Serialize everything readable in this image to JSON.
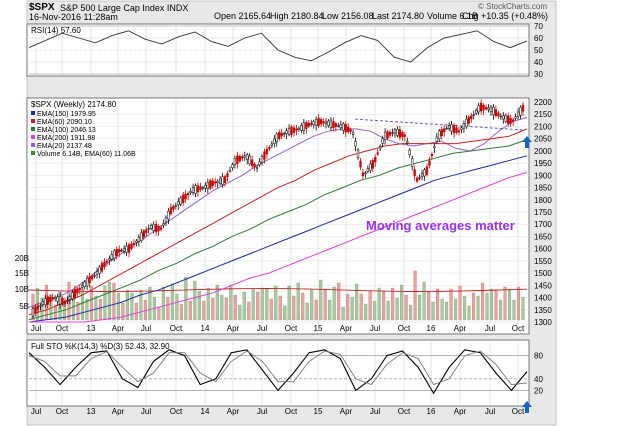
{
  "header": {
    "symbol": "$SPX",
    "name": "S&P 500 Large Cap Index INDX",
    "date": "16-Nov-2016 11:28am",
    "open": "Open 2165.64",
    "high": "High 2180.84",
    "low": "Low 2156.08",
    "last": "Last 2174.80",
    "volume": "Volume 6.1B",
    "chg": "Chg +10.35 (+0.48%)",
    "watermark": "© StockCharts.com"
  },
  "rsi_panel": {
    "title": "RSI(14) 57.60",
    "ticks": [
      "70",
      "60",
      "50",
      "40",
      "30"
    ]
  },
  "main_panel": {
    "title": "$SPX (Weekly) 2174.80",
    "legend": [
      {
        "label": "EMA(150) 1979.95",
        "color": "#1a2aa8"
      },
      {
        "label": "EMA(60) 2090.10",
        "color": "#cc2222"
      },
      {
        "label": "EMA(100) 2046.13",
        "color": "#2e7d32"
      },
      {
        "label": "EMA(200) 1911.98",
        "color": "#e040e0"
      },
      {
        "label": "EMA(20) 2137.48",
        "color": "#9a5fd0"
      },
      {
        "label": "Volume 6.14B, EMA(60) 11.06B",
        "color": "#3a8a3a"
      }
    ],
    "annotation": "Moving averages matter",
    "ticks": [
      "2200",
      "2150",
      "2100",
      "2050",
      "2000",
      "1950",
      "1900",
      "1850",
      "1800",
      "1750",
      "1700",
      "1650",
      "1600",
      "1550",
      "1500",
      "1450",
      "1400",
      "1350",
      "1300"
    ],
    "volume_ticks": [
      "20B",
      "15B",
      "10B",
      "5B"
    ]
  },
  "sto_panel": {
    "title": "Full STO %K(14,3) %D(3) 52.43, 32.90",
    "ticks": [
      "80",
      "40",
      "20"
    ]
  },
  "x_axis": {
    "labels": [
      "Jul",
      "Oct",
      "13",
      "Apr",
      "Jul",
      "Oct",
      "14",
      "Apr",
      "Jul",
      "Oct",
      "15",
      "Apr",
      "Jul",
      "Oct",
      "16",
      "Apr",
      "Jul",
      "Oct"
    ]
  },
  "colors": {
    "up_candle": "#000000",
    "down_candle": "#cc0000",
    "annotation": "#9b30ff",
    "arrow": "#1565c0",
    "trendline": "#6a5acd",
    "panel_bg": "#ffffff",
    "outer_bg": "#e8e8e8"
  },
  "chart_data": [
    {
      "type": "line",
      "panel": "RSI(14)",
      "ylim": [
        30,
        70
      ],
      "series": [
        {
          "name": "RSI(14)",
          "values": [
            52,
            58,
            64,
            60,
            56,
            62,
            66,
            59,
            55,
            61,
            65,
            57,
            53,
            60,
            64,
            50,
            44,
            41,
            48,
            56,
            62,
            58,
            44,
            40,
            52,
            60,
            63,
            66,
            57,
            52,
            57.6
          ]
        }
      ]
    },
    {
      "type": "line",
      "panel": "$SPX (Weekly)",
      "ylim": [
        1300,
        2200
      ],
      "series": [
        {
          "name": "$SPX",
          "values": [
            1340,
            1380,
            1400,
            1380,
            1420,
            1460,
            1500,
            1550,
            1590,
            1600,
            1640,
            1690,
            1680,
            1760,
            1800,
            1840,
            1850,
            1870,
            1880,
            1960,
            1980,
            1930,
            2000,
            2060,
            2080,
            2090,
            2110,
            2120,
            2110,
            2100,
            2080,
            1900,
            1950,
            2060,
            2080,
            2060,
            1880,
            1920,
            2060,
            2100,
            2080,
            2130,
            2180,
            2170,
            2140,
            2120,
            2174.8
          ]
        },
        {
          "name": "EMA(20)",
          "values": [
            1360,
            1380,
            1400,
            1430,
            1470,
            1520,
            1560,
            1600,
            1640,
            1680,
            1720,
            1760,
            1800,
            1840,
            1870,
            1900,
            1940,
            1970,
            2000,
            2030,
            2060,
            2080,
            2090,
            2090,
            2080,
            2050,
            2030,
            2020,
            2030,
            2040,
            2010,
            2000,
            2030,
            2080,
            2120,
            2137.48
          ]
        },
        {
          "name": "EMA(60)",
          "values": [
            1330,
            1350,
            1380,
            1410,
            1450,
            1490,
            1530,
            1570,
            1610,
            1650,
            1690,
            1730,
            1770,
            1810,
            1850,
            1880,
            1920,
            1950,
            1980,
            2000,
            2020,
            2030,
            2030,
            2030,
            2030,
            2040,
            2050,
            2060,
            2090.1
          ]
        },
        {
          "name": "EMA(100)",
          "values": [
            1310,
            1330,
            1350,
            1380,
            1410,
            1440,
            1470,
            1510,
            1540,
            1580,
            1610,
            1650,
            1680,
            1720,
            1750,
            1780,
            1820,
            1850,
            1880,
            1900,
            1930,
            1950,
            1970,
            1990,
            2000,
            2010,
            2020,
            2046.13
          ]
        },
        {
          "name": "EMA(150)",
          "values": [
            1300,
            1310,
            1320,
            1340,
            1360,
            1380,
            1410,
            1430,
            1460,
            1490,
            1520,
            1550,
            1580,
            1610,
            1640,
            1670,
            1700,
            1730,
            1760,
            1790,
            1820,
            1850,
            1880,
            1900,
            1920,
            1940,
            1960,
            1979.95
          ]
        },
        {
          "name": "EMA(200)",
          "values": [
            1270,
            1280,
            1290,
            1300,
            1310,
            1320,
            1340,
            1360,
            1380,
            1400,
            1420,
            1450,
            1480,
            1500,
            1530,
            1560,
            1590,
            1620,
            1650,
            1680,
            1710,
            1740,
            1770,
            1800,
            1830,
            1860,
            1890,
            1911.98
          ]
        }
      ]
    },
    {
      "type": "line",
      "panel": "Full STO %K(14,3) %D(3)",
      "ylim": [
        0,
        100
      ],
      "series": [
        {
          "name": "%K",
          "values": [
            85,
            60,
            30,
            60,
            85,
            88,
            40,
            25,
            70,
            90,
            80,
            30,
            40,
            85,
            90,
            55,
            20,
            50,
            85,
            90,
            75,
            20,
            40,
            80,
            88,
            60,
            15,
            60,
            90,
            85,
            50,
            20,
            52.43
          ]
        },
        {
          "name": "%D",
          "values": [
            80,
            70,
            45,
            45,
            75,
            87,
            60,
            35,
            50,
            85,
            85,
            50,
            35,
            70,
            88,
            70,
            35,
            35,
            70,
            88,
            82,
            40,
            30,
            65,
            85,
            75,
            30,
            40,
            80,
            88,
            65,
            30,
            32.9
          ]
        }
      ]
    }
  ]
}
